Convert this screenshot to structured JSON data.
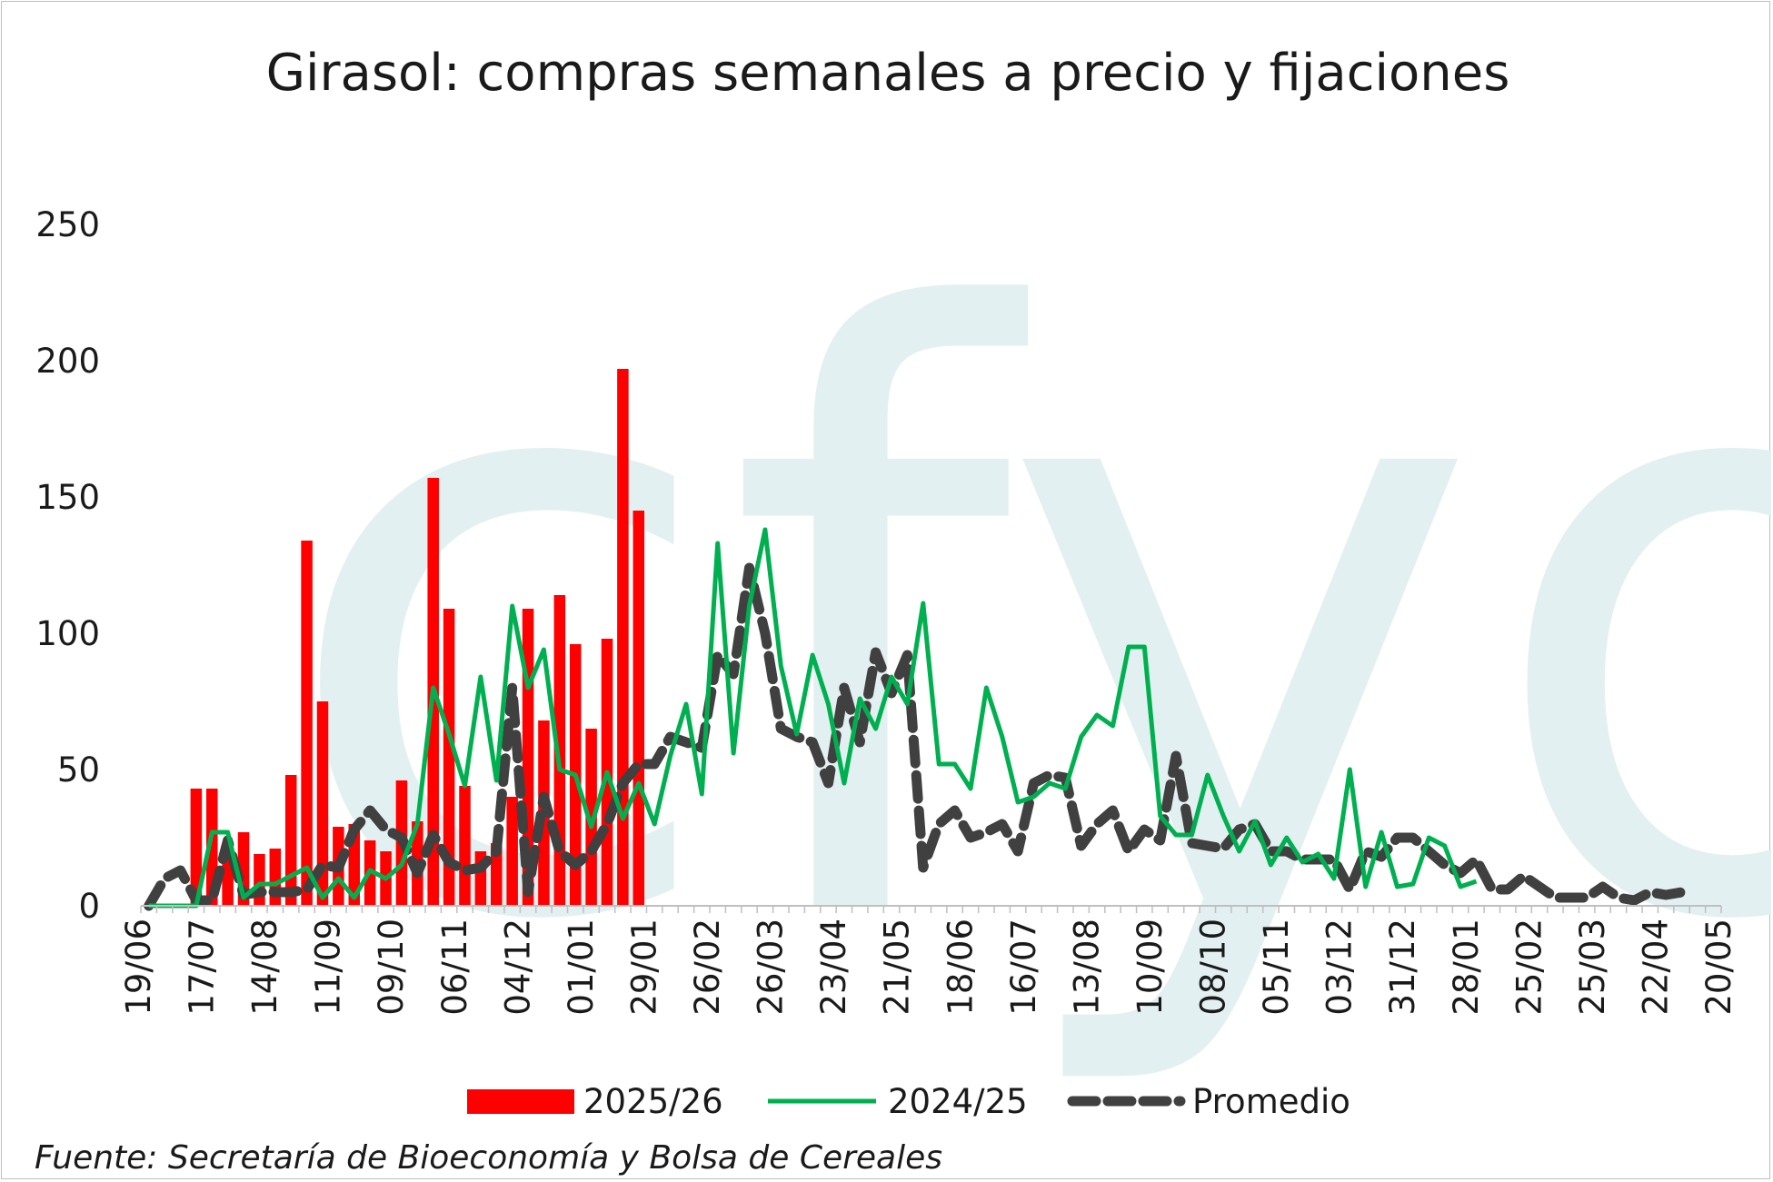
{
  "colors": {
    "bars": "#ff0000",
    "line_2024": "#00b050",
    "line_avg": "#404040",
    "watermark": "#e3f0f2",
    "axis": "#bfbfbf"
  },
  "watermark_text": "cfyo",
  "chart_data": {
    "type": "bar",
    "title": "Girasol: compras semanales a precio y fijaciones",
    "xlabel": "",
    "ylabel": "",
    "ylim": [
      0,
      250
    ],
    "yticks": [
      0,
      50,
      100,
      150,
      200,
      250
    ],
    "n_weeks": 100,
    "xtick_labels": [
      {
        "week": 0,
        "label": "19/06"
      },
      {
        "week": 4,
        "label": "17/07"
      },
      {
        "week": 8,
        "label": "14/08"
      },
      {
        "week": 12,
        "label": "11/09"
      },
      {
        "week": 16,
        "label": "09/10"
      },
      {
        "week": 20,
        "label": "06/11"
      },
      {
        "week": 24,
        "label": "04/12"
      },
      {
        "week": 28,
        "label": "01/01"
      },
      {
        "week": 32,
        "label": "29/01"
      },
      {
        "week": 36,
        "label": "26/02"
      },
      {
        "week": 40,
        "label": "26/03"
      },
      {
        "week": 44,
        "label": "23/04"
      },
      {
        "week": 48,
        "label": "21/05"
      },
      {
        "week": 52,
        "label": "18/06"
      },
      {
        "week": 56,
        "label": "16/07"
      },
      {
        "week": 60,
        "label": "13/08"
      },
      {
        "week": 64,
        "label": "10/09"
      },
      {
        "week": 68,
        "label": "08/10"
      },
      {
        "week": 72,
        "label": "05/11"
      },
      {
        "week": 76,
        "label": "03/12"
      },
      {
        "week": 80,
        "label": "31/12"
      },
      {
        "week": 84,
        "label": "28/01"
      },
      {
        "week": 88,
        "label": "25/02"
      },
      {
        "week": 92,
        "label": "25/03"
      },
      {
        "week": 96,
        "label": "22/04"
      },
      {
        "week": 100,
        "label": "20/05"
      }
    ],
    "legend_placement": "bottom",
    "series": [
      {
        "name": "2025/26",
        "type": "bar",
        "values": [
          0,
          0,
          0,
          43,
          43,
          22,
          27,
          19,
          21,
          48,
          134,
          75,
          29,
          30,
          24,
          20,
          46,
          31,
          157,
          109,
          44,
          20,
          23,
          40,
          109,
          68,
          114,
          96,
          65,
          98,
          197,
          145
        ]
      },
      {
        "name": "2024/25",
        "type": "line",
        "values": [
          0,
          0,
          0,
          0,
          27,
          27,
          3,
          8,
          8,
          11,
          14,
          3,
          10,
          3,
          13,
          10,
          15,
          30,
          80,
          63,
          44,
          84,
          46,
          110,
          80,
          94,
          50,
          48,
          29,
          49,
          32,
          45,
          30,
          55,
          74,
          41,
          133,
          56,
          110,
          138,
          88,
          63,
          92,
          74,
          45,
          76,
          65,
          84,
          74,
          111,
          52,
          52,
          43,
          80,
          62,
          38,
          40,
          45,
          43,
          62,
          70,
          66,
          95,
          95,
          33,
          26,
          26,
          48,
          33,
          20,
          31,
          15,
          25,
          16,
          19,
          10,
          50,
          7,
          27,
          7,
          8,
          25,
          22,
          7,
          9
        ]
      },
      {
        "name": "Promedio",
        "type": "line",
        "dashed": true,
        "values": [
          0,
          10,
          13,
          2,
          2,
          24,
          4,
          5,
          5,
          5,
          6,
          15,
          14,
          28,
          35,
          28,
          25,
          12,
          26,
          16,
          13,
          14,
          20,
          80,
          5,
          40,
          20,
          15,
          20,
          30,
          45,
          52,
          52,
          62,
          60,
          58,
          92,
          85,
          124,
          100,
          65,
          62,
          60,
          45,
          80,
          60,
          93,
          78,
          92,
          14,
          30,
          35,
          25,
          27,
          30,
          20,
          45,
          48,
          47,
          22,
          30,
          35,
          20,
          28,
          24,
          55,
          23,
          22,
          21,
          28,
          30,
          20,
          20,
          17,
          17,
          17,
          6,
          20,
          18,
          25,
          25,
          20,
          15,
          12,
          17,
          6,
          6,
          11,
          7,
          3,
          3,
          3,
          7,
          3,
          2,
          5,
          4,
          5
        ]
      }
    ]
  },
  "source_text": "Fuente: Secretaría de Bioeconomía y Bolsa de Cereales"
}
